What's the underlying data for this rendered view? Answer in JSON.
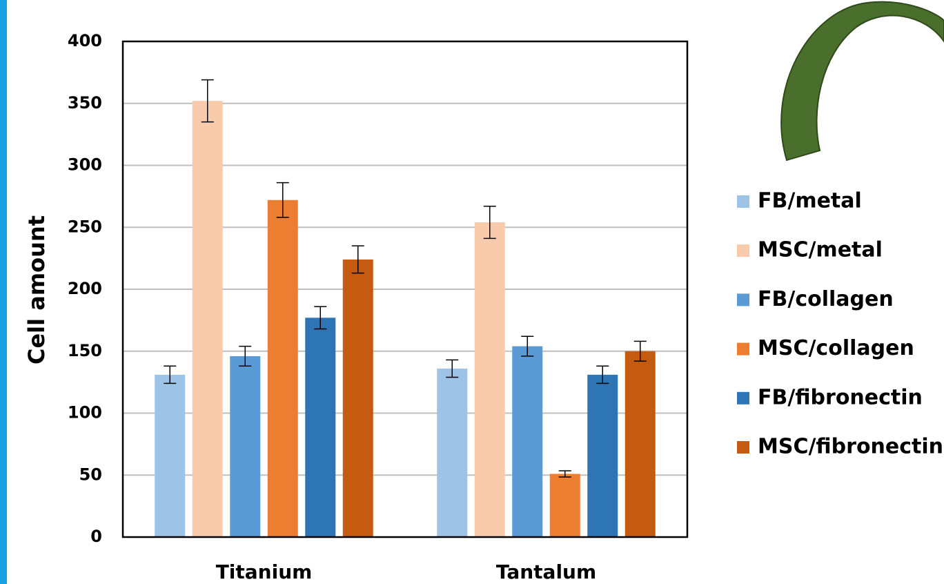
{
  "chart_data": {
    "type": "bar",
    "y_label": "Cell amount",
    "categories": [
      "Titanium",
      "Tantalum"
    ],
    "series": [
      {
        "name": "FB/metal",
        "color": "#9dc3e6",
        "values": [
          131,
          136
        ],
        "errors": [
          7,
          7
        ]
      },
      {
        "name": "MSC/metal",
        "color": "#f8cbad",
        "values": [
          352,
          254
        ],
        "errors": [
          17,
          13
        ]
      },
      {
        "name": "FB/collagen",
        "color": "#5b9bd5",
        "values": [
          146,
          154
        ],
        "errors": [
          8,
          8
        ]
      },
      {
        "name": "MSC/collagen",
        "color": "#ed7d31",
        "values": [
          272,
          51
        ],
        "errors": [
          14,
          2.5
        ]
      },
      {
        "name": "FB/fibronectin",
        "color": "#2e75b6",
        "values": [
          177,
          131
        ],
        "errors": [
          9,
          7
        ]
      },
      {
        "name": "MSC/fibronectin",
        "color": "#c55a11",
        "values": [
          224,
          150
        ],
        "errors": [
          11,
          8
        ]
      }
    ],
    "ylim": [
      0,
      400
    ],
    "yticks": [
      0,
      50,
      100,
      150,
      200,
      250,
      300,
      350,
      400
    ],
    "grid": true
  }
}
